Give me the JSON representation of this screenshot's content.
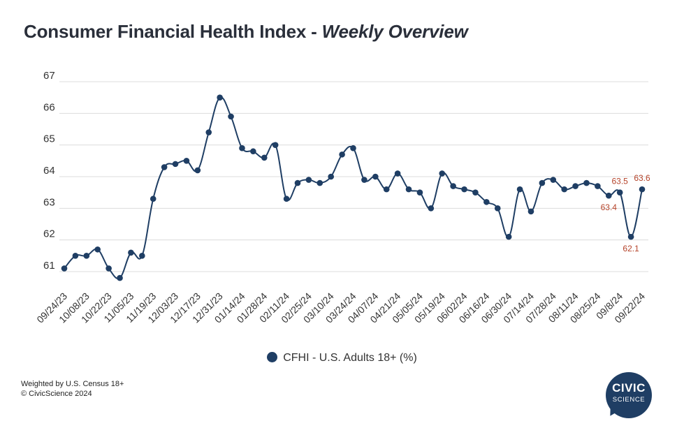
{
  "title": {
    "main": "Consumer Financial Health Index - ",
    "emphasis": "Weekly Overview"
  },
  "legend": {
    "label": "CFHI - U.S. Adults 18+ (%)"
  },
  "footer": {
    "line1": "Weighted by U.S. Census 18+",
    "line2": "© CivicScience 2024"
  },
  "logo": {
    "line1": "CIVIC",
    "line2": "SCIENCE"
  },
  "colors": {
    "series": "#1f3e64",
    "annotation": "#b5432a",
    "grid": "#dcdcdc",
    "text": "#333333"
  },
  "chart_data": {
    "type": "line",
    "xlabel": "",
    "ylabel": "",
    "ylim": [
      61,
      67
    ],
    "yticks": [
      61,
      62,
      63,
      64,
      65,
      66,
      67
    ],
    "grid": true,
    "legend_position": "bottom",
    "x_tick_labels": [
      "09/24/23",
      "10/08/23",
      "10/22/23",
      "11/05/23",
      "11/19/23",
      "12/03/23",
      "12/17/23",
      "12/31/23",
      "01/14/24",
      "01/28/24",
      "02/11/24",
      "02/25/24",
      "03/10/24",
      "03/24/24",
      "04/07/24",
      "04/21/24",
      "05/05/24",
      "05/19/24",
      "06/02/24",
      "06/16/24",
      "06/30/24",
      "07/14/24",
      "07/28/24",
      "08/11/24",
      "08/25/24",
      "09/8/24",
      "09/22/24"
    ],
    "series": [
      {
        "name": "CFHI - U.S. Adults 18+ (%)",
        "values": [
          61.1,
          61.5,
          61.5,
          61.7,
          61.1,
          60.8,
          61.6,
          61.5,
          63.3,
          64.3,
          64.4,
          64.5,
          64.2,
          65.4,
          66.5,
          65.9,
          64.9,
          64.8,
          64.6,
          65.0,
          63.3,
          63.8,
          63.9,
          63.8,
          64.0,
          64.7,
          64.9,
          63.9,
          64.0,
          63.6,
          64.1,
          63.6,
          63.5,
          63.0,
          64.1,
          63.7,
          63.6,
          63.5,
          63.2,
          63.0,
          62.1,
          63.6,
          62.9,
          63.8,
          63.9,
          63.6,
          63.7,
          63.8,
          63.7,
          63.4,
          63.5,
          62.1,
          63.6
        ]
      }
    ],
    "annotations": [
      {
        "index": 49,
        "label": "63.4",
        "position": "below"
      },
      {
        "index": 50,
        "label": "63.5",
        "position": "above"
      },
      {
        "index": 51,
        "label": "62.1",
        "position": "below"
      },
      {
        "index": 52,
        "label": "63.6",
        "position": "above"
      }
    ]
  }
}
